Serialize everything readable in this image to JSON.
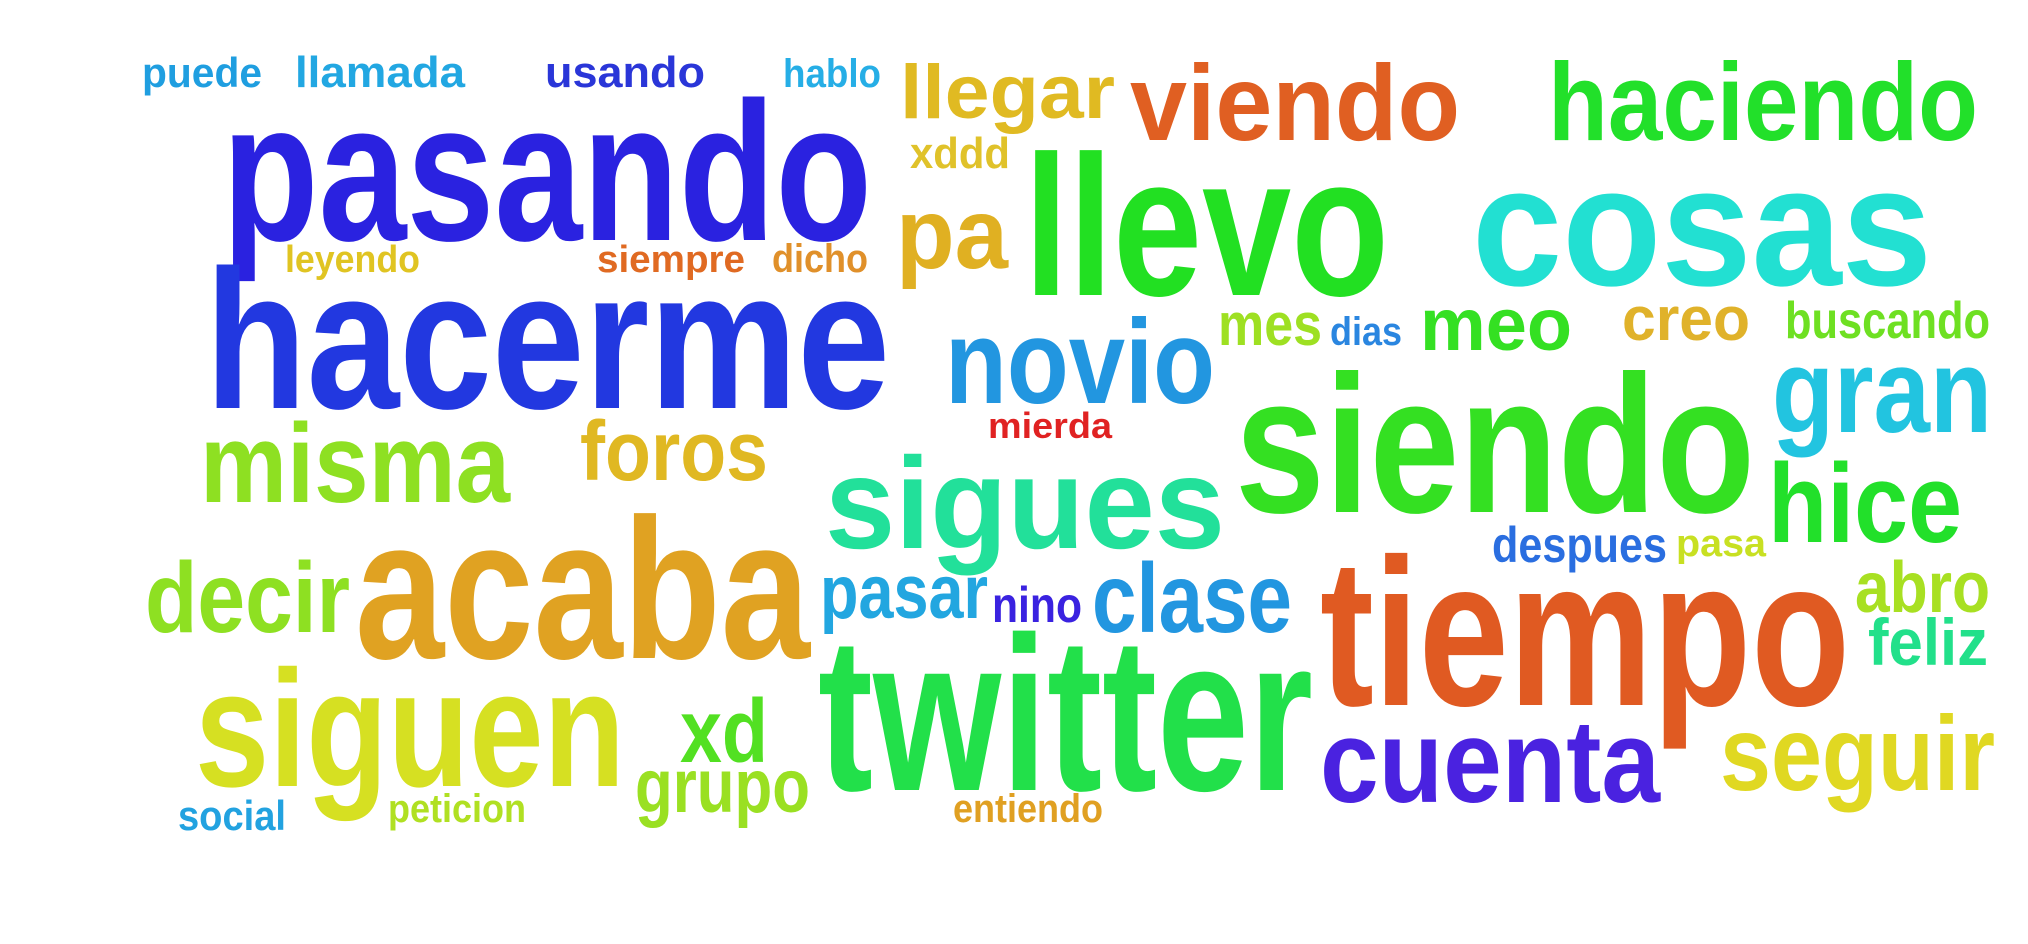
{
  "word_cloud": {
    "words": [
      {
        "text": "puede",
        "color": "#1f9ee0"
      },
      {
        "text": "llamada",
        "color": "#22a7e2"
      },
      {
        "text": "usando",
        "color": "#2a36d8"
      },
      {
        "text": "hablo",
        "color": "#26aee6"
      },
      {
        "text": "llegar",
        "color": "#e0ba22"
      },
      {
        "text": "viendo",
        "color": "#e05f22"
      },
      {
        "text": "haciendo",
        "color": "#22e02a"
      },
      {
        "text": "pasando",
        "color": "#2a22e0"
      },
      {
        "text": "xddd",
        "color": "#e0c22a"
      },
      {
        "text": "pa",
        "color": "#e0b022"
      },
      {
        "text": "llevo",
        "color": "#22e022"
      },
      {
        "text": "cosas",
        "color": "#22e0d2"
      },
      {
        "text": "leyendo",
        "color": "#e0c422"
      },
      {
        "text": "siempre",
        "color": "#e06a22"
      },
      {
        "text": "dicho",
        "color": "#e0902a"
      },
      {
        "text": "hacerme",
        "color": "#2238e0"
      },
      {
        "text": "mes",
        "color": "#9ee022"
      },
      {
        "text": "dias",
        "color": "#2a86e0"
      },
      {
        "text": "meo",
        "color": "#34e022"
      },
      {
        "text": "creo",
        "color": "#e0b22a"
      },
      {
        "text": "buscando",
        "color": "#6ee022"
      },
      {
        "text": "novio",
        "color": "#2296e0"
      },
      {
        "text": "gran",
        "color": "#22c4e0"
      },
      {
        "text": "misma",
        "color": "#8ee022"
      },
      {
        "text": "foros",
        "color": "#e0b822"
      },
      {
        "text": "mierda",
        "color": "#e02222"
      },
      {
        "text": "siendo",
        "color": "#34e022"
      },
      {
        "text": "sigues",
        "color": "#22e09a"
      },
      {
        "text": "hice",
        "color": "#22e02a"
      },
      {
        "text": "despues",
        "color": "#2a6ee0"
      },
      {
        "text": "pasa",
        "color": "#c8e022"
      },
      {
        "text": "decir",
        "color": "#8ee022"
      },
      {
        "text": "acaba",
        "color": "#e0a222"
      },
      {
        "text": "abro",
        "color": "#a8e022"
      },
      {
        "text": "pasar",
        "color": "#22a6e0"
      },
      {
        "text": "nino",
        "color": "#3a22e0"
      },
      {
        "text": "clase",
        "color": "#2296e0"
      },
      {
        "text": "tiempo",
        "color": "#e05a22"
      },
      {
        "text": "feliz",
        "color": "#22e08a"
      },
      {
        "text": "siguen",
        "color": "#d6e022"
      },
      {
        "text": "xd",
        "color": "#52e022"
      },
      {
        "text": "twitter",
        "color": "#22e04a"
      },
      {
        "text": "cuenta",
        "color": "#4a22e0"
      },
      {
        "text": "seguir",
        "color": "#e0d822"
      },
      {
        "text": "grupo",
        "color": "#9ae022"
      },
      {
        "text": "social",
        "color": "#22a2e0"
      },
      {
        "text": "peticion",
        "color": "#b0e022"
      },
      {
        "text": "entiendo",
        "color": "#e0a022"
      }
    ]
  }
}
